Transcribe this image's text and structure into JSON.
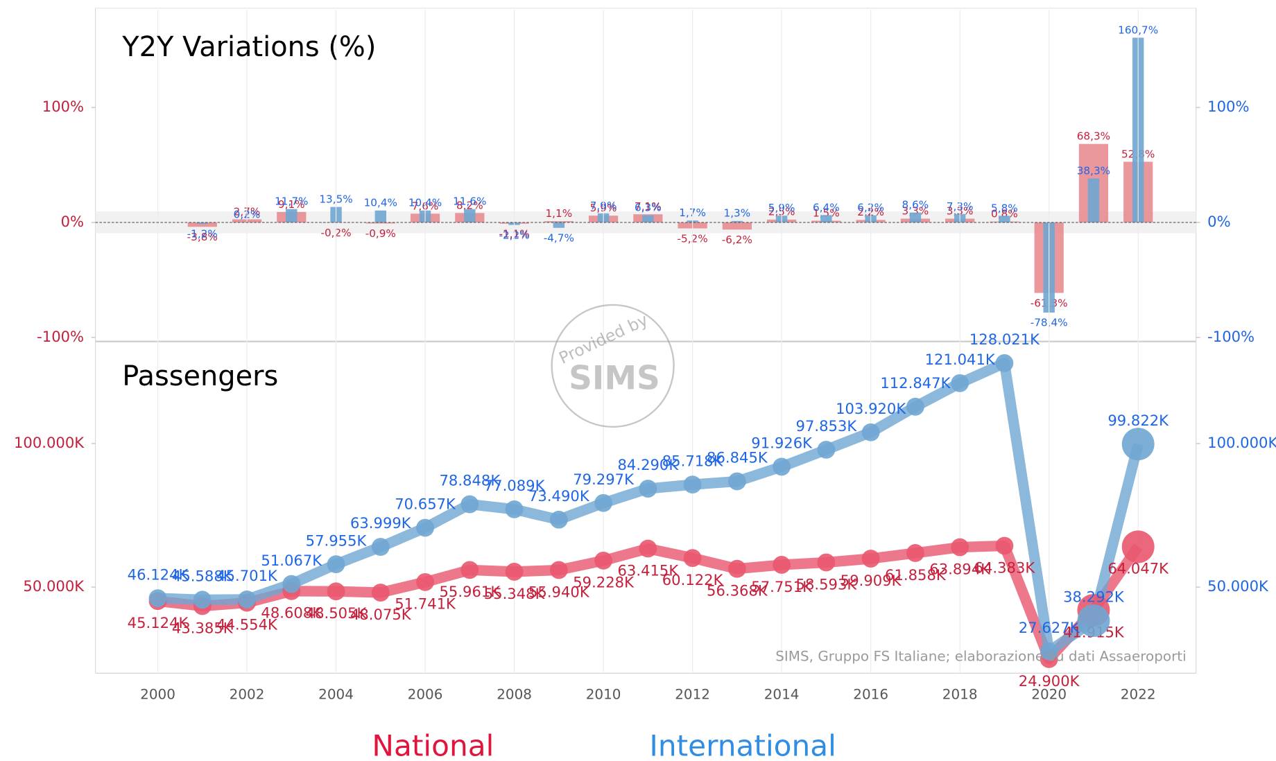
{
  "chart_data": [
    {
      "type": "bar",
      "title": "Y2Y Variations (%)",
      "x": [
        2000,
        2001,
        2002,
        2003,
        2004,
        2005,
        2006,
        2007,
        2008,
        2009,
        2010,
        2011,
        2012,
        2013,
        2014,
        2015,
        2016,
        2017,
        2018,
        2019,
        2020,
        2021,
        2022
      ],
      "xlim": [
        1998.6,
        2023.3
      ],
      "ylim": [
        -100,
        185
      ],
      "yticks": [
        {
          "value": -100,
          "label": "-100%"
        },
        {
          "value": 0,
          "label": "0%"
        },
        {
          "value": 100,
          "label": "100%"
        }
      ],
      "y2lim": [
        -100,
        185
      ],
      "y2ticks": [
        {
          "value": -100,
          "label": "-100%"
        },
        {
          "value": 0,
          "label": "0%"
        },
        {
          "value": 100,
          "label": "100%"
        }
      ],
      "series": [
        {
          "color": "#e8868c",
          "values": [
            null,
            -3.8,
            2.7,
            9.1,
            -0.2,
            -0.9,
            7.6,
            8.2,
            -1.1,
            1.1,
            5.9,
            7.1,
            -5.2,
            -6.2,
            2.5,
            1.5,
            2.2,
            3.3,
            3.3,
            0.8,
            -61.3,
            68.3,
            52.8
          ],
          "value_labels": [
            null,
            "-3,8%",
            "2,7%",
            "9,1%",
            "-0,2%",
            "-0,9%",
            "7,6%",
            "8,2%",
            "-1,1%",
            "1,1%",
            "5,9%",
            "7,1%",
            "-5,2%",
            "-6,2%",
            "2,5%",
            "1,5%",
            "2,2%",
            "3,3%",
            "3,3%",
            "0,8%",
            "-61,3%",
            "68,3%",
            "52,8%"
          ]
        },
        {
          "color": "#6fa6d2",
          "values": [
            null,
            -1.2,
            0.2,
            11.7,
            13.5,
            10.4,
            10.4,
            11.6,
            -2.2,
            -4.7,
            7.9,
            6.3,
            1.7,
            1.3,
            5.9,
            6.4,
            6.2,
            8.6,
            7.3,
            5.8,
            -78.4,
            38.3,
            160.7
          ],
          "value_labels": [
            null,
            "-1,2%",
            "0,2%",
            "11,7%",
            "13,5%",
            "10,4%",
            "10,4%",
            "11,6%",
            "-2,2%",
            "-4,7%",
            "7,9%",
            "6,3%",
            "1,7%",
            "1,3%",
            "5,9%",
            "6,4%",
            "6,2%",
            "8,6%",
            "7,3%",
            "5,8%",
            "-78,4%",
            "38,3%",
            "160,7%"
          ]
        }
      ]
    },
    {
      "type": "line",
      "title": "Passengers",
      "x": [
        2000,
        2001,
        2002,
        2003,
        2004,
        2005,
        2006,
        2007,
        2008,
        2009,
        2010,
        2011,
        2012,
        2013,
        2014,
        2015,
        2016,
        2017,
        2018,
        2019,
        2020,
        2021,
        2022
      ],
      "xlim": [
        1998.6,
        2023.3
      ],
      "xticks": [
        2000,
        2002,
        2004,
        2006,
        2008,
        2010,
        2012,
        2014,
        2016,
        2018,
        2020,
        2022
      ],
      "ylim": [
        20,
        135
      ],
      "yticks": [
        {
          "value": 50,
          "label": "50.000K"
        },
        {
          "value": 100,
          "label": "100.000K"
        }
      ],
      "y2lim": [
        20,
        135
      ],
      "y2ticks": [
        {
          "value": 50,
          "label": "50.000K"
        },
        {
          "value": 100,
          "label": "100.000K"
        }
      ],
      "source": "SIMS, Gruppo FS Italiane; elaborazione su dati Assaeroporti",
      "series": [
        {
          "name": "National",
          "color": "#e9566e",
          "values": [
            45.124,
            43.385,
            44.554,
            48.608,
            48.505,
            48.075,
            51.741,
            55.961,
            55.348,
            55.94,
            59.228,
            63.415,
            60.122,
            56.368,
            57.751,
            58.593,
            59.909,
            61.858,
            63.894,
            64.383,
            24.9,
            41.915,
            64.047
          ],
          "value_labels": [
            "45.124K",
            "43.385K",
            "44.554K",
            "48.608K",
            "48.505K",
            "48.075K",
            "51.741K",
            "55.961K",
            "55.348K",
            "55.940K",
            "59.228K",
            "63.415K",
            "60.122K",
            "56.368K",
            "57.751K",
            "58.593K",
            "59.909K",
            "61.858K",
            "63.894K",
            "64.383K",
            "24.900K",
            "41.915K",
            "64.047K"
          ]
        },
        {
          "name": "International",
          "color": "#6fa6d2",
          "values": [
            46.124,
            45.588,
            45.701,
            51.067,
            57.955,
            63.999,
            70.657,
            78.848,
            77.089,
            73.49,
            79.297,
            84.29,
            85.718,
            86.845,
            91.926,
            97.853,
            103.92,
            112.847,
            121.041,
            128.021,
            27.627,
            38.292,
            99.822
          ],
          "value_labels": [
            "46.124K",
            "45.588K",
            "45.701K",
            "51.067K",
            "57.955K",
            "63.999K",
            "70.657K",
            "78.848K",
            "77.089K",
            "73.490K",
            "79.297K",
            "84.290K",
            "85.718K",
            "86.845K",
            "91.926K",
            "97.853K",
            "103.920K",
            "112.847K",
            "121.041K",
            "128.021K",
            "27.627K",
            "38.292K",
            "99.822K"
          ]
        }
      ]
    }
  ],
  "watermark": {
    "line1": "Provided by",
    "line2": "SIMS"
  }
}
